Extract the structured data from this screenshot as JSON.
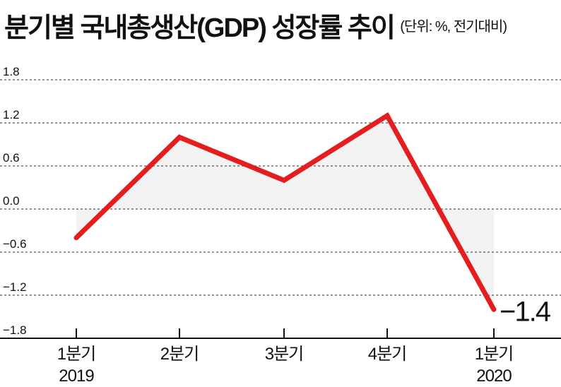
{
  "chart_data": {
    "type": "area",
    "title": "분기별 국내총생산(GDP) 성장률 추이",
    "subtitle": "(단위: %, 전기대비)",
    "categories": [
      {
        "line1": "1분기",
        "line2": "2019"
      },
      {
        "line1": "2분기",
        "line2": ""
      },
      {
        "line1": "3분기",
        "line2": ""
      },
      {
        "line1": "4분기",
        "line2": ""
      },
      {
        "line1": "1분기",
        "line2": "2020"
      }
    ],
    "values": [
      -0.4,
      1.0,
      0.4,
      1.3,
      -1.4
    ],
    "y_ticks": [
      "1.8",
      "1.2",
      "0.6",
      "0.0",
      "−0.6",
      "−1.2",
      "−1.8"
    ],
    "y_tick_values": [
      1.8,
      1.2,
      0.6,
      0.0,
      -0.6,
      -1.2,
      -1.8
    ],
    "ylim": [
      -1.8,
      1.8
    ],
    "annotations": [
      {
        "index": 4,
        "text": "−1.4"
      }
    ],
    "grid": "horizontal-dashed",
    "colors": {
      "line": "#e41e1e",
      "fill": "#f2f2f2",
      "grid": "#555555",
      "axis": "#111111"
    }
  }
}
